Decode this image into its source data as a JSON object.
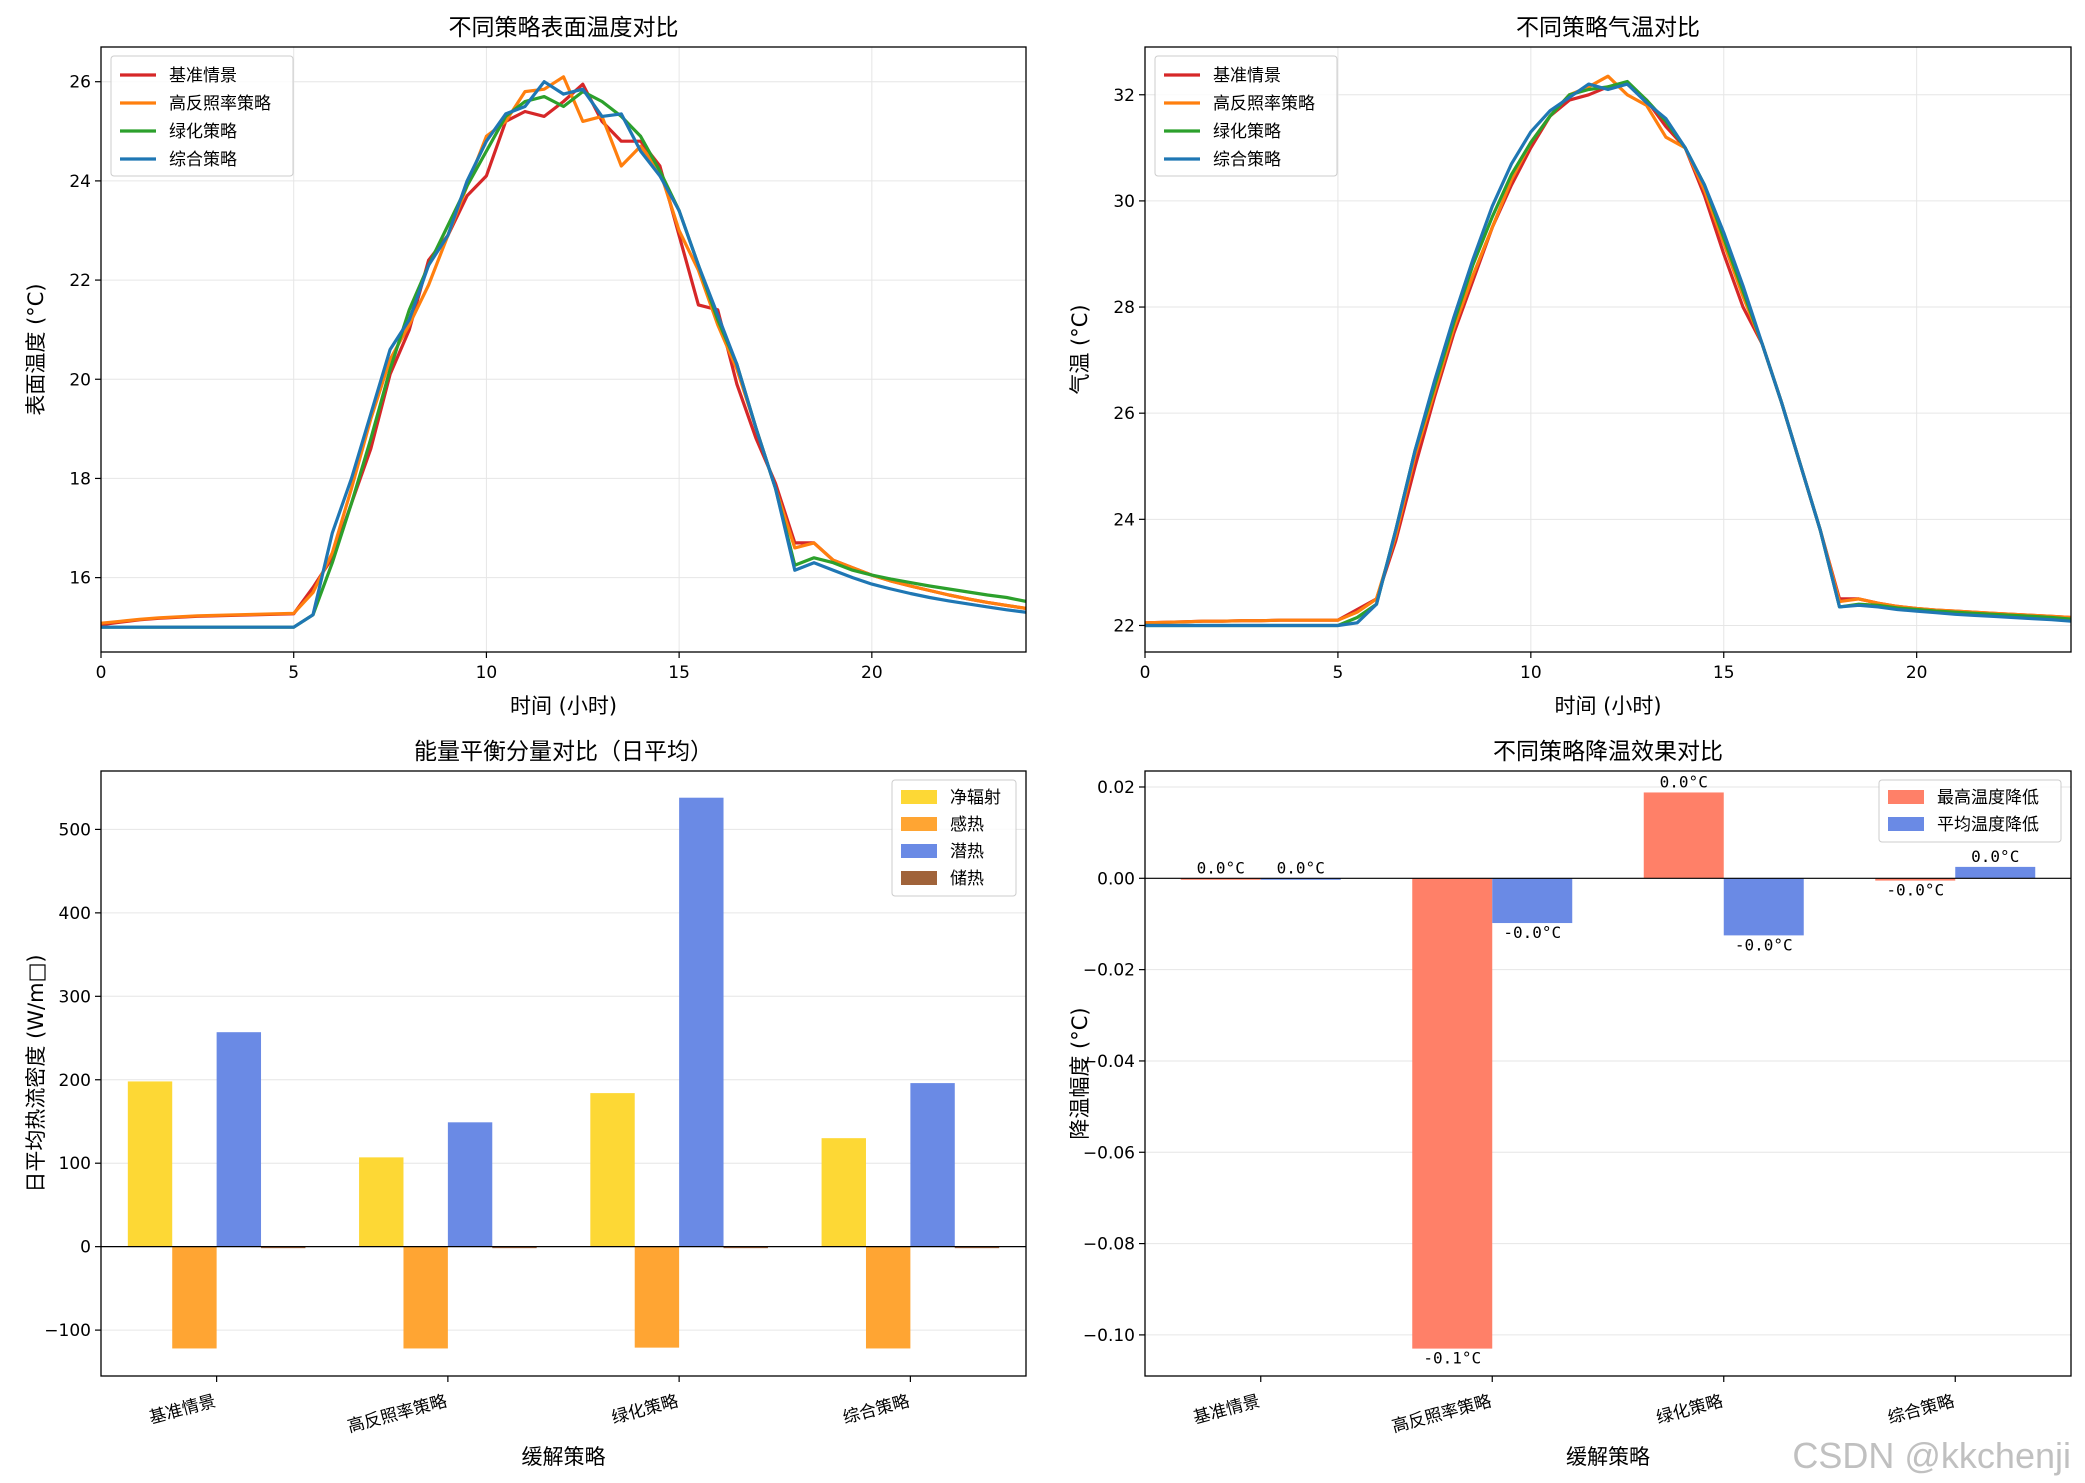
{
  "watermark": "CSDN @kkchenji",
  "chart_data": [
    {
      "id": "surface",
      "type": "line",
      "title": "不同策略表面温度对比",
      "xlabel": "时间 (小时)",
      "ylabel": "表面温度 (°C)",
      "xlim": [
        0,
        24
      ],
      "ylim": [
        14.5,
        26.7
      ],
      "xticks": [
        0,
        5,
        10,
        15,
        20
      ],
      "yticks": [
        16,
        18,
        20,
        22,
        24,
        26
      ],
      "legend": "upper-left",
      "grid": true,
      "series": [
        {
          "name": "基准情景",
          "color": "#d62728",
          "x": [
            0,
            0.5,
            1,
            1.5,
            2,
            2.5,
            3,
            3.5,
            4,
            4.5,
            5,
            5.5,
            6,
            6.5,
            7,
            7.5,
            8,
            8.5,
            9,
            9.5,
            10,
            10.5,
            11,
            11.5,
            12,
            12.5,
            13,
            13.5,
            14,
            14.5,
            15,
            15.5,
            16,
            16.5,
            17,
            17.5,
            18,
            18.5,
            19,
            19.5,
            20,
            20.5,
            21,
            21.5,
            22,
            22.5,
            23,
            23.5,
            24
          ],
          "y": [
            15.05,
            15.1,
            15.15,
            15.18,
            15.2,
            15.22,
            15.23,
            15.24,
            15.25,
            15.26,
            15.27,
            15.8,
            16.4,
            17.5,
            18.6,
            20.1,
            21.0,
            22.4,
            22.9,
            23.7,
            24.1,
            25.2,
            25.4,
            25.3,
            25.6,
            25.95,
            25.2,
            24.8,
            24.8,
            24.3,
            22.9,
            21.5,
            21.4,
            19.9,
            18.8,
            17.9,
            16.7,
            16.7,
            16.35,
            16.2,
            16.05,
            15.93,
            15.83,
            15.74,
            15.65,
            15.57,
            15.5,
            15.44,
            15.38
          ]
        },
        {
          "name": "高反照率策略",
          "color": "#ff7f0e",
          "x": [
            0,
            0.5,
            1,
            1.5,
            2,
            2.5,
            3,
            3.5,
            4,
            4.5,
            5,
            5.5,
            6,
            6.5,
            7,
            7.5,
            8,
            8.5,
            9,
            9.5,
            10,
            10.5,
            11,
            11.5,
            12,
            12.5,
            13,
            13.5,
            14,
            14.5,
            15,
            15.5,
            16,
            16.5,
            17,
            17.5,
            18,
            18.5,
            19,
            19.5,
            20,
            20.5,
            21,
            21.5,
            22,
            22.5,
            23,
            23.5,
            24
          ],
          "y": [
            15.08,
            15.12,
            15.16,
            15.19,
            15.21,
            15.23,
            15.24,
            15.25,
            15.26,
            15.27,
            15.28,
            15.7,
            16.5,
            17.8,
            19.2,
            20.4,
            21.1,
            21.9,
            22.9,
            23.9,
            24.9,
            25.2,
            25.8,
            25.85,
            26.1,
            25.2,
            25.3,
            24.3,
            24.7,
            24.2,
            23.0,
            22.2,
            21.1,
            20.2,
            19.0,
            17.8,
            16.6,
            16.7,
            16.35,
            16.2,
            16.05,
            15.93,
            15.83,
            15.74,
            15.65,
            15.57,
            15.5,
            15.44,
            15.38
          ]
        },
        {
          "name": "绿化策略",
          "color": "#2ca02c",
          "x": [
            0,
            0.5,
            1,
            1.5,
            2,
            2.5,
            3,
            3.5,
            4,
            4.5,
            5,
            5.5,
            6,
            6.5,
            7,
            7.5,
            8,
            8.5,
            9,
            9.5,
            10,
            10.5,
            11,
            11.5,
            12,
            12.5,
            13,
            13.5,
            14,
            14.5,
            15,
            15.5,
            16,
            16.5,
            17,
            17.5,
            18,
            18.5,
            19,
            19.5,
            20,
            20.5,
            21,
            21.5,
            22,
            22.5,
            23,
            23.5,
            24
          ],
          "y": [
            15.0,
            15.0,
            15.0,
            15.0,
            15.0,
            15.0,
            15.0,
            15.0,
            15.0,
            15.0,
            15.0,
            15.25,
            16.3,
            17.5,
            18.8,
            20.2,
            21.4,
            22.3,
            23.1,
            23.9,
            24.6,
            25.3,
            25.6,
            25.7,
            25.5,
            25.8,
            25.6,
            25.3,
            24.9,
            24.2,
            23.4,
            22.3,
            21.2,
            20.3,
            19.0,
            17.8,
            16.25,
            16.4,
            16.3,
            16.15,
            16.05,
            15.97,
            15.9,
            15.83,
            15.77,
            15.71,
            15.65,
            15.6,
            15.52
          ]
        },
        {
          "name": "综合策略",
          "color": "#1f77b4",
          "x": [
            0,
            0.5,
            1,
            1.5,
            2,
            2.5,
            3,
            3.5,
            4,
            4.5,
            5,
            5.5,
            6,
            6.5,
            7,
            7.5,
            8,
            8.5,
            9,
            9.5,
            10,
            10.5,
            11,
            11.5,
            12,
            12.5,
            13,
            13.5,
            14,
            14.5,
            15,
            15.5,
            16,
            16.5,
            17,
            17.5,
            18,
            18.5,
            19,
            19.5,
            20,
            20.5,
            21,
            21.5,
            22,
            22.5,
            23,
            23.5,
            24
          ],
          "y": [
            15.0,
            15.0,
            15.0,
            15.0,
            15.0,
            15.0,
            15.0,
            15.0,
            15.0,
            15.0,
            15.0,
            15.25,
            16.9,
            18.0,
            19.3,
            20.6,
            21.2,
            22.3,
            22.9,
            24.0,
            24.8,
            25.35,
            25.5,
            26.0,
            25.75,
            25.85,
            25.3,
            25.35,
            24.6,
            24.1,
            23.4,
            22.3,
            21.3,
            20.3,
            19.0,
            17.8,
            16.15,
            16.3,
            16.15,
            16.0,
            15.87,
            15.77,
            15.68,
            15.6,
            15.53,
            15.47,
            15.41,
            15.35,
            15.3
          ]
        }
      ]
    },
    {
      "id": "air",
      "type": "line",
      "title": "不同策略气温对比",
      "xlabel": "时间 (小时)",
      "ylabel": "气温 (°C)",
      "xlim": [
        0,
        24
      ],
      "ylim": [
        21.5,
        32.9
      ],
      "xticks": [
        0,
        5,
        10,
        15,
        20
      ],
      "yticks": [
        22,
        24,
        26,
        28,
        30,
        32
      ],
      "legend": "upper-left",
      "grid": true,
      "series": [
        {
          "name": "基准情景",
          "color": "#d62728",
          "x": [
            0,
            0.5,
            1,
            1.5,
            2,
            2.5,
            3,
            3.5,
            4,
            4.5,
            5,
            5.5,
            6,
            6.5,
            7,
            7.5,
            8,
            8.5,
            9,
            9.5,
            10,
            10.5,
            11,
            11.5,
            12,
            12.5,
            13,
            13.5,
            14,
            14.5,
            15,
            15.5,
            16,
            16.5,
            17,
            17.5,
            18,
            18.5,
            19,
            19.5,
            20,
            20.5,
            21,
            21.5,
            22,
            22.5,
            23,
            23.5,
            24
          ],
          "y": [
            22.05,
            22.06,
            22.07,
            22.08,
            22.08,
            22.09,
            22.09,
            22.1,
            22.1,
            22.1,
            22.1,
            22.3,
            22.5,
            23.6,
            25.0,
            26.3,
            27.5,
            28.5,
            29.5,
            30.3,
            31.0,
            31.6,
            31.9,
            32.0,
            32.15,
            32.2,
            31.9,
            31.4,
            31.0,
            30.1,
            29.0,
            28.0,
            27.3,
            26.2,
            25.0,
            23.8,
            22.5,
            22.5,
            22.42,
            22.36,
            22.32,
            22.29,
            22.27,
            22.25,
            22.23,
            22.21,
            22.19,
            22.17,
            22.15
          ]
        },
        {
          "name": "高反照率策略",
          "color": "#ff7f0e",
          "x": [
            0,
            0.5,
            1,
            1.5,
            2,
            2.5,
            3,
            3.5,
            4,
            4.5,
            5,
            5.5,
            6,
            6.5,
            7,
            7.5,
            8,
            8.5,
            9,
            9.5,
            10,
            10.5,
            11,
            11.5,
            12,
            12.5,
            13,
            13.5,
            14,
            14.5,
            15,
            15.5,
            16,
            16.5,
            17,
            17.5,
            18,
            18.5,
            19,
            19.5,
            20,
            20.5,
            21,
            21.5,
            22,
            22.5,
            23,
            23.5,
            24
          ],
          "y": [
            22.05,
            22.06,
            22.07,
            22.08,
            22.08,
            22.09,
            22.09,
            22.1,
            22.1,
            22.1,
            22.1,
            22.25,
            22.5,
            23.7,
            25.2,
            26.4,
            27.6,
            28.6,
            29.5,
            30.4,
            31.1,
            31.6,
            32.0,
            32.15,
            32.35,
            32.0,
            31.8,
            31.2,
            31.0,
            30.2,
            29.2,
            28.2,
            27.3,
            26.2,
            25.0,
            23.8,
            22.45,
            22.5,
            22.42,
            22.36,
            22.32,
            22.29,
            22.27,
            22.25,
            22.23,
            22.21,
            22.19,
            22.17,
            22.15
          ]
        },
        {
          "name": "绿化策略",
          "color": "#2ca02c",
          "x": [
            0,
            0.5,
            1,
            1.5,
            2,
            2.5,
            3,
            3.5,
            4,
            4.5,
            5,
            5.5,
            6,
            6.5,
            7,
            7.5,
            8,
            8.5,
            9,
            9.5,
            10,
            10.5,
            11,
            11.5,
            12,
            12.5,
            13,
            13.5,
            14,
            14.5,
            15,
            15.5,
            16,
            16.5,
            17,
            17.5,
            18,
            18.5,
            19,
            19.5,
            20,
            20.5,
            21,
            21.5,
            22,
            22.5,
            23,
            23.5,
            24
          ],
          "y": [
            22.0,
            22.0,
            22.0,
            22.0,
            22.0,
            22.0,
            22.0,
            22.0,
            22.0,
            22.0,
            22.0,
            22.15,
            22.4,
            23.8,
            25.3,
            26.5,
            27.7,
            28.8,
            29.7,
            30.5,
            31.1,
            31.6,
            32.0,
            32.1,
            32.15,
            32.25,
            31.9,
            31.5,
            31.0,
            30.3,
            29.3,
            28.3,
            27.3,
            26.2,
            25.0,
            23.8,
            22.35,
            22.4,
            22.38,
            22.33,
            22.3,
            22.27,
            22.25,
            22.23,
            22.21,
            22.19,
            22.17,
            22.15,
            22.12
          ]
        },
        {
          "name": "综合策略",
          "color": "#1f77b4",
          "x": [
            0,
            0.5,
            1,
            1.5,
            2,
            2.5,
            3,
            3.5,
            4,
            4.5,
            5,
            5.5,
            6,
            6.5,
            7,
            7.5,
            8,
            8.5,
            9,
            9.5,
            10,
            10.5,
            11,
            11.5,
            12,
            12.5,
            13,
            13.5,
            14,
            14.5,
            15,
            15.5,
            16,
            16.5,
            17,
            17.5,
            18,
            18.5,
            19,
            19.5,
            20,
            20.5,
            21,
            21.5,
            22,
            22.5,
            23,
            23.5,
            24
          ],
          "y": [
            22.0,
            22.0,
            22.0,
            22.0,
            22.0,
            22.0,
            22.0,
            22.0,
            22.0,
            22.0,
            22.0,
            22.05,
            22.4,
            23.8,
            25.3,
            26.6,
            27.8,
            28.9,
            29.9,
            30.7,
            31.3,
            31.7,
            31.95,
            32.2,
            32.1,
            32.2,
            31.85,
            31.55,
            31.0,
            30.3,
            29.4,
            28.4,
            27.3,
            26.2,
            25.0,
            23.8,
            22.35,
            22.38,
            22.35,
            22.3,
            22.27,
            22.24,
            22.21,
            22.19,
            22.17,
            22.15,
            22.13,
            22.11,
            22.08
          ]
        }
      ]
    },
    {
      "id": "energy",
      "type": "bar",
      "title": "能量平衡分量对比（日平均）",
      "xlabel": "缓解策略",
      "ylabel": "日平均热流密度 (W/m□)",
      "ylim": [
        -155,
        570
      ],
      "yticks": [
        -100,
        0,
        100,
        200,
        300,
        400,
        500
      ],
      "categories": [
        "基准情景",
        "高反照率策略",
        "绿化策略",
        "综合策略"
      ],
      "legend": "upper-right",
      "grid": true,
      "series": [
        {
          "name": "净辐射",
          "color": "#fdd835",
          "values": [
            198,
            107,
            184,
            130
          ]
        },
        {
          "name": "感热",
          "color": "#ffa533",
          "values": [
            -122,
            -122,
            -121,
            -122
          ]
        },
        {
          "name": "潜热",
          "color": "#6a8ae5",
          "values": [
            257,
            149,
            538,
            196
          ]
        },
        {
          "name": "储热",
          "color": "#a0633a",
          "values": [
            -1,
            -1,
            -1,
            -1
          ]
        }
      ]
    },
    {
      "id": "cooling",
      "type": "bar",
      "title": "不同策略降温效果对比",
      "xlabel": "缓解策略",
      "ylabel": "降温幅度 (°C)",
      "ylim": [
        -0.109,
        0.0235
      ],
      "yticks": [
        -0.1,
        -0.08,
        -0.06,
        -0.04,
        -0.02,
        0.0,
        0.02
      ],
      "ytick_labels": [
        "−0.10",
        "−0.08",
        "−0.06",
        "−0.04",
        "−0.02",
        "0.00",
        "0.02"
      ],
      "categories": [
        "基准情景",
        "高反照率策略",
        "绿化策略",
        "综合策略"
      ],
      "legend": "upper-right",
      "grid": true,
      "series": [
        {
          "name": "最高温度降低",
          "color": "#ff8068",
          "values": [
            0.0,
            -0.103,
            0.0188,
            -0.0005
          ],
          "labels": [
            "0.0°C",
            "-0.1°C",
            "0.0°C",
            "-0.0°C"
          ]
        },
        {
          "name": "平均温度降低",
          "color": "#6a8ae5",
          "values": [
            0.0,
            -0.0098,
            -0.0125,
            0.0025
          ],
          "labels": [
            "0.0°C",
            "-0.0°C",
            "-0.0°C",
            "0.0°C"
          ]
        }
      ]
    }
  ]
}
